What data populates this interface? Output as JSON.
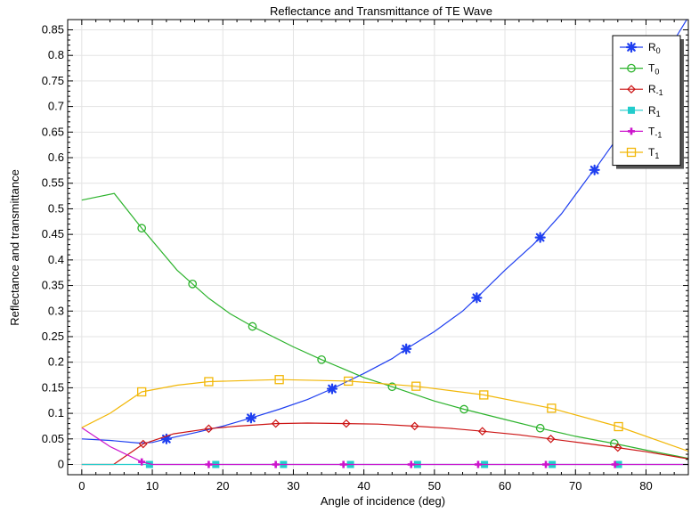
{
  "chart_data": {
    "type": "line",
    "title": "Reflectance and Transmittance of TE Wave",
    "xlabel": "Angle of incidence (deg)",
    "ylabel": "Reflectance and transmittance",
    "xlim": [
      -2,
      86
    ],
    "ylim": [
      -0.02,
      0.87
    ],
    "xticks": [
      0,
      10,
      20,
      30,
      40,
      50,
      60,
      70,
      80
    ],
    "yticks": [
      0,
      0.05,
      0.1,
      0.15,
      0.2,
      0.25,
      0.3,
      0.35,
      0.4,
      0.45,
      0.5,
      0.55,
      0.6,
      0.65,
      0.7,
      0.75,
      0.8,
      0.85
    ],
    "ytick_labels": [
      "0",
      "0.05",
      "0.1",
      "0.15",
      "0.2",
      "0.25",
      "0.3",
      "0.35",
      "0.4",
      "0.45",
      "0.5",
      "0.55",
      "0.6",
      "0.65",
      "0.7",
      "0.75",
      "0.8",
      "0.85"
    ],
    "grid": true,
    "legend_position": "top-right",
    "series": [
      {
        "name": "R0",
        "label_main": "R",
        "label_sub": "0",
        "color": "#1f3ff0",
        "marker": "asterisk",
        "line": [
          [
            0,
            0.05
          ],
          [
            4,
            0.047
          ],
          [
            8,
            0.042
          ],
          [
            10,
            0.043
          ],
          [
            12,
            0.05
          ],
          [
            16,
            0.062
          ],
          [
            20,
            0.075
          ],
          [
            24,
            0.091
          ],
          [
            28,
            0.108
          ],
          [
            32,
            0.127
          ],
          [
            35.5,
            0.148
          ],
          [
            40,
            0.178
          ],
          [
            44,
            0.207
          ],
          [
            46,
            0.226
          ],
          [
            50,
            0.26
          ],
          [
            54,
            0.3
          ],
          [
            56,
            0.326
          ],
          [
            60,
            0.38
          ],
          [
            64,
            0.43
          ],
          [
            65,
            0.444
          ],
          [
            68,
            0.49
          ],
          [
            72,
            0.565
          ],
          [
            72.7,
            0.576
          ],
          [
            76,
            0.64
          ],
          [
            80,
            0.73
          ],
          [
            84,
            0.83
          ],
          [
            86,
            0.875
          ]
        ],
        "markers": [
          [
            12,
            0.05
          ],
          [
            24,
            0.091
          ],
          [
            35.5,
            0.148
          ],
          [
            46,
            0.226
          ],
          [
            56,
            0.326
          ],
          [
            65,
            0.444
          ],
          [
            72.7,
            0.576
          ]
        ]
      },
      {
        "name": "T0",
        "label_main": "T",
        "label_sub": "0",
        "color": "#2db32d",
        "marker": "circle",
        "line": [
          [
            0,
            0.517
          ],
          [
            4.6,
            0.53
          ],
          [
            8.5,
            0.462
          ],
          [
            13.5,
            0.38
          ],
          [
            15.7,
            0.353
          ],
          [
            18,
            0.325
          ],
          [
            21,
            0.295
          ],
          [
            24.2,
            0.27
          ],
          [
            30,
            0.23
          ],
          [
            34,
            0.205
          ],
          [
            40,
            0.17
          ],
          [
            44,
            0.152
          ],
          [
            50,
            0.124
          ],
          [
            54.2,
            0.108
          ],
          [
            60,
            0.088
          ],
          [
            65,
            0.071
          ],
          [
            70,
            0.055
          ],
          [
            75.5,
            0.041
          ],
          [
            80,
            0.028
          ],
          [
            86,
            0.012
          ]
        ],
        "markers": [
          [
            8.5,
            0.462
          ],
          [
            15.7,
            0.353
          ],
          [
            24.2,
            0.27
          ],
          [
            34,
            0.205
          ],
          [
            44,
            0.152
          ],
          [
            54.2,
            0.108
          ],
          [
            65,
            0.071
          ],
          [
            75.5,
            0.041
          ]
        ]
      },
      {
        "name": "R-1",
        "label_main": "R",
        "label_sub": "-1",
        "color": "#cc1414",
        "marker": "diamond",
        "line": [
          [
            0,
            0.0
          ],
          [
            4.5,
            0.0
          ],
          [
            8.7,
            0.04
          ],
          [
            13,
            0.06
          ],
          [
            18,
            0.07
          ],
          [
            22,
            0.075
          ],
          [
            27.5,
            0.08
          ],
          [
            32,
            0.081
          ],
          [
            37.5,
            0.08
          ],
          [
            42,
            0.079
          ],
          [
            47.2,
            0.075
          ],
          [
            52,
            0.071
          ],
          [
            56.8,
            0.065
          ],
          [
            62,
            0.058
          ],
          [
            66.5,
            0.05
          ],
          [
            71,
            0.042
          ],
          [
            76,
            0.033
          ],
          [
            80,
            0.025
          ],
          [
            86,
            0.011
          ]
        ],
        "markers": [
          [
            8.7,
            0.04
          ],
          [
            18,
            0.07
          ],
          [
            27.5,
            0.08
          ],
          [
            37.5,
            0.08
          ],
          [
            47.2,
            0.075
          ],
          [
            56.8,
            0.065
          ],
          [
            66.5,
            0.05
          ],
          [
            76,
            0.033
          ]
        ]
      },
      {
        "name": "R1",
        "label_main": "R",
        "label_sub": "1",
        "color": "#22cccc",
        "marker": "square-filled",
        "line": [
          [
            0,
            0.0
          ],
          [
            86,
            0.0
          ]
        ],
        "markers": [
          [
            9.6,
            0.0
          ],
          [
            19,
            0.0
          ],
          [
            28.6,
            0.0
          ],
          [
            38.1,
            0.0
          ],
          [
            47.6,
            0.0
          ],
          [
            57.1,
            0.0
          ],
          [
            66.7,
            0.0
          ],
          [
            76.1,
            0.0
          ]
        ]
      },
      {
        "name": "T-1",
        "label_main": "T",
        "label_sub": "-1",
        "color": "#cc14cc",
        "marker": "plus",
        "line": [
          [
            0,
            0.072
          ],
          [
            4,
            0.035
          ],
          [
            8.5,
            0.005
          ],
          [
            10,
            0.0
          ],
          [
            86,
            0.0
          ]
        ],
        "markers": [
          [
            8.5,
            0.005
          ],
          [
            18,
            0.0
          ],
          [
            27.5,
            0.0
          ],
          [
            37.1,
            0.0
          ],
          [
            46.7,
            0.0
          ],
          [
            56.2,
            0.0
          ],
          [
            65.8,
            0.0
          ],
          [
            75.6,
            0.0
          ]
        ]
      },
      {
        "name": "T1",
        "label_main": "T",
        "label_sub": "1",
        "color": "#f2b707",
        "marker": "square",
        "line": [
          [
            0,
            0.072
          ],
          [
            4,
            0.1
          ],
          [
            8.5,
            0.142
          ],
          [
            13.5,
            0.155
          ],
          [
            18,
            0.162
          ],
          [
            28,
            0.166
          ],
          [
            37.8,
            0.163
          ],
          [
            47.4,
            0.153
          ],
          [
            57,
            0.136
          ],
          [
            66.6,
            0.11
          ],
          [
            76.1,
            0.074
          ],
          [
            86,
            0.026
          ]
        ],
        "markers": [
          [
            8.5,
            0.142
          ],
          [
            18,
            0.162
          ],
          [
            28,
            0.166
          ],
          [
            37.8,
            0.163
          ],
          [
            47.4,
            0.153
          ],
          [
            57,
            0.136
          ],
          [
            66.6,
            0.11
          ],
          [
            76.1,
            0.074
          ]
        ]
      }
    ]
  }
}
